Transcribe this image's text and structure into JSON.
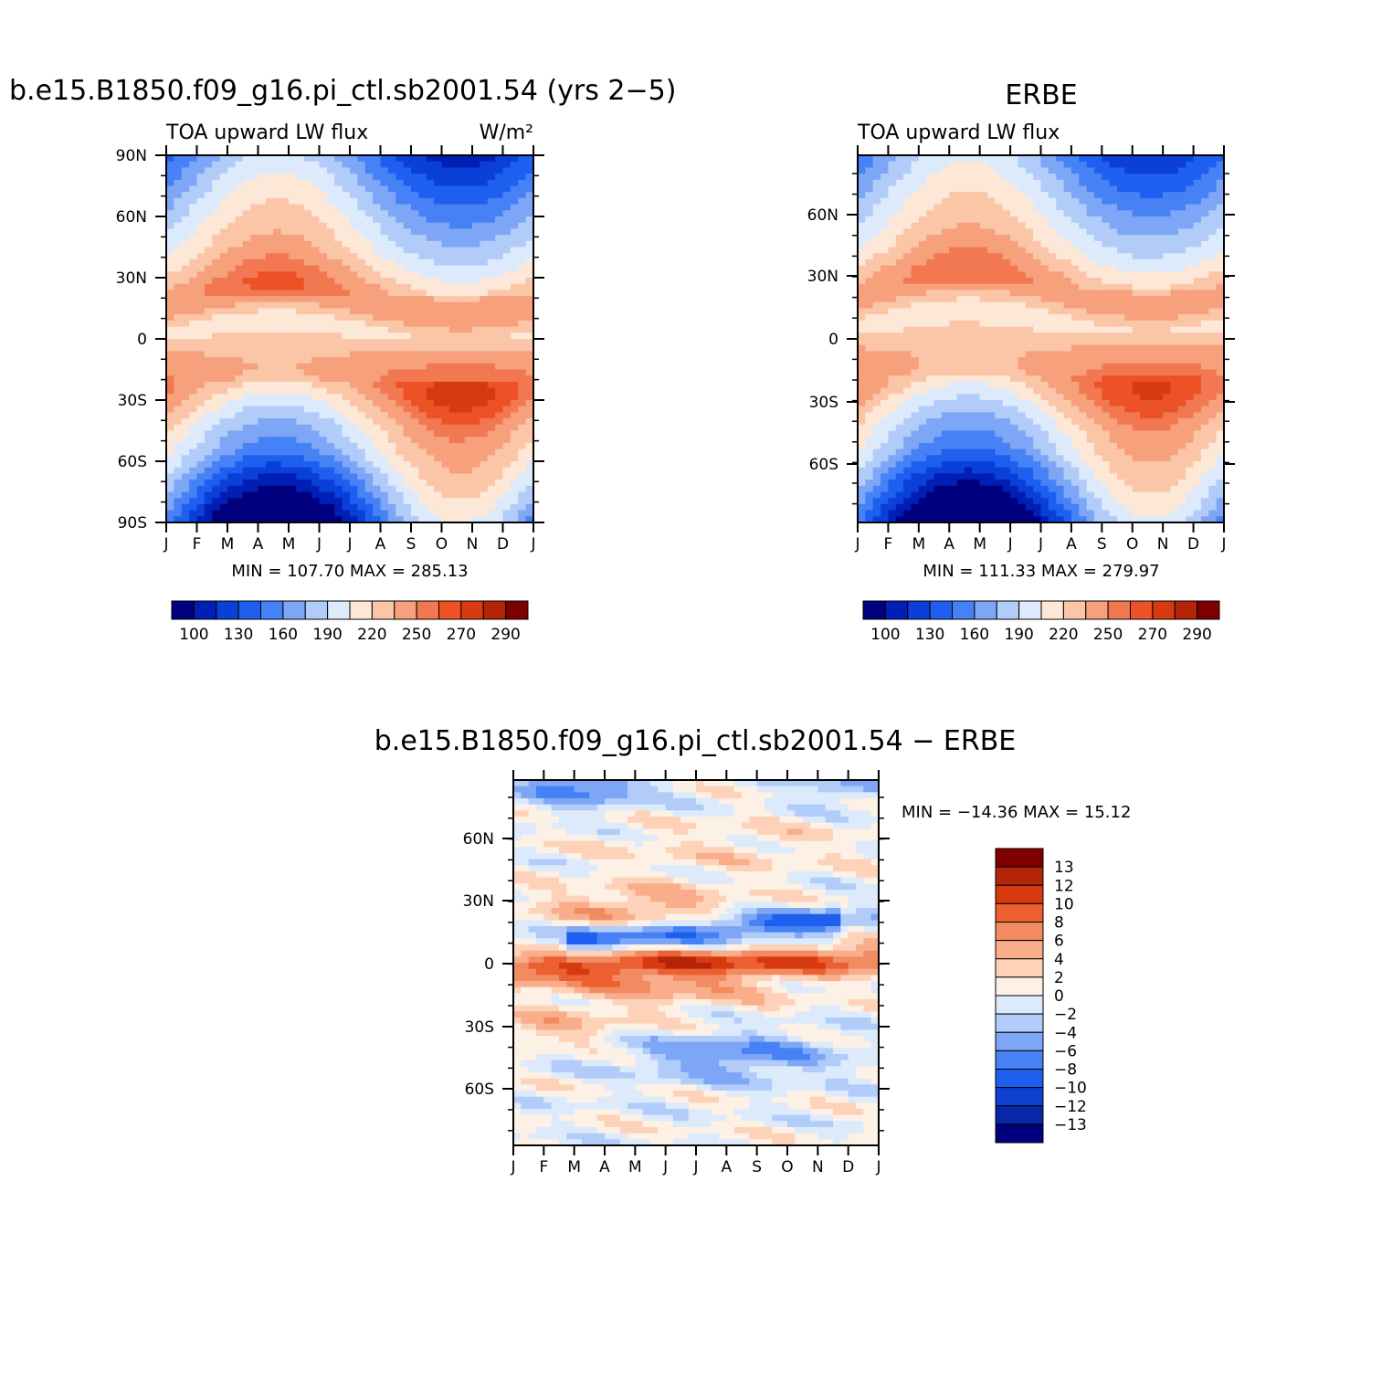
{
  "chart_data": [
    {
      "type": "heatmap",
      "id": "model",
      "title": "b.e15.B1850.f09_g16.pi_ctl.sb2001.54 (yrs 2−5)",
      "subtitle_left": "TOA upward LW flux",
      "units": "W/m²",
      "x_ticks": [
        "J",
        "F",
        "M",
        "A",
        "M",
        "J",
        "J",
        "A",
        "S",
        "O",
        "N",
        "D",
        "J"
      ],
      "y_ticks": [
        "90N",
        "60N",
        "30N",
        "0",
        "30S",
        "60S",
        "90S"
      ],
      "ylim": [
        -90,
        90
      ],
      "min_max_text": "MIN = 107.70 MAX = 285.13",
      "min": 107.7,
      "max": 285.13,
      "colorbar_labels": [
        "100",
        "130",
        "160",
        "190",
        "220",
        "250",
        "270",
        "290"
      ],
      "colorbar_orientation": "horizontal"
    },
    {
      "type": "heatmap",
      "id": "obs",
      "title": "ERBE",
      "subtitle_left": "TOA upward LW flux",
      "x_ticks": [
        "J",
        "F",
        "M",
        "A",
        "M",
        "J",
        "J",
        "A",
        "S",
        "O",
        "N",
        "D",
        "J"
      ],
      "y_ticks": [
        "60N",
        "30N",
        "0",
        "30S",
        "60S"
      ],
      "min_max_text": "MIN = 111.33 MAX = 279.97",
      "min": 111.33,
      "max": 279.97,
      "colorbar_labels": [
        "100",
        "130",
        "160",
        "190",
        "220",
        "250",
        "270",
        "290"
      ],
      "colorbar_orientation": "horizontal"
    },
    {
      "type": "heatmap",
      "id": "diff",
      "title": "b.e15.B1850.f09_g16.pi_ctl.sb2001.54 − ERBE",
      "x_ticks": [
        "J",
        "F",
        "M",
        "A",
        "M",
        "J",
        "J",
        "A",
        "S",
        "O",
        "N",
        "D",
        "J"
      ],
      "y_ticks": [
        "60N",
        "30N",
        "0",
        "30S",
        "60S"
      ],
      "min_max_text": "MIN = −14.36 MAX =   15.12",
      "min": -14.36,
      "max": 15.12,
      "colorbar_labels": [
        "13",
        "12",
        "10",
        "8",
        "6",
        "4",
        "2",
        "0",
        "−2",
        "−4",
        "−6",
        "−8",
        "−10",
        "−12",
        "−13"
      ],
      "colorbar_orientation": "vertical"
    }
  ],
  "colors": {
    "lw_palette": [
      "#00007f",
      "#001fb4",
      "#0a40d8",
      "#1f5ff0",
      "#4682f5",
      "#7ea6f7",
      "#b2ccf9",
      "#dceafc",
      "#fde8d8",
      "#fbc6a8",
      "#f7a07c",
      "#f27852",
      "#ec5225",
      "#d83a10",
      "#b42408",
      "#7f0000"
    ],
    "diff_palette": [
      "#00007f",
      "#0826a8",
      "#0f40cf",
      "#1f5ff0",
      "#4682f5",
      "#7ea6f7",
      "#b2ccf9",
      "#dceafc",
      "#fdf0e4",
      "#fdd2b8",
      "#f9ad8a",
      "#f28a62",
      "#ec5f30",
      "#d83a10",
      "#b42408",
      "#7f0000"
    ]
  }
}
